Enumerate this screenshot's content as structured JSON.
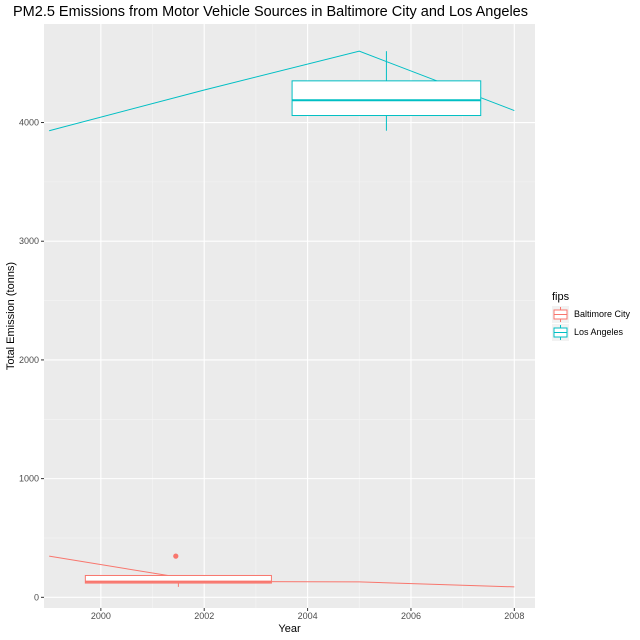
{
  "chart_data": {
    "type": "line+boxplot",
    "title": "PM2.5 Emissions from Motor Vehicle Sources in Baltimore City and Los Angeles",
    "xlabel": "Year",
    "ylabel": "Total Emission (tonns)",
    "xlim": [
      1998.9,
      2008.4
    ],
    "ylim": [
      -90,
      4830
    ],
    "x_ticks": [
      2000,
      2002,
      2004,
      2006,
      2008
    ],
    "y_ticks": [
      0,
      1000,
      2000,
      3000,
      4000
    ],
    "grid": true,
    "legend": {
      "title": "fips",
      "placement": "right",
      "entries": [
        "Baltimore City",
        "Los Angeles"
      ]
    },
    "series": [
      {
        "name": "Baltimore City",
        "color": "#F8766D",
        "x": [
          1999,
          2002,
          2005,
          2008
        ],
        "y": [
          347,
          134,
          130,
          88
        ],
        "box": {
          "x_min": 1999.7,
          "x_max": 2003.3,
          "whisker_low": 88,
          "q1": 120,
          "median": 132,
          "q3": 184,
          "whisker_high": 184,
          "outliers": [
            {
              "x": 2001.45,
              "y": 347
            }
          ]
        }
      },
      {
        "name": "Los Angeles",
        "color": "#00BFC4",
        "x": [
          1999,
          2002,
          2005,
          2008
        ],
        "y": [
          3931,
          4274,
          4601,
          4101
        ],
        "box": {
          "x_min": 2003.7,
          "x_max": 2007.35,
          "whisker_low": 3931,
          "q1": 4059,
          "median": 4188,
          "q3": 4351,
          "whisker_high": 4601,
          "outliers": []
        }
      }
    ]
  }
}
